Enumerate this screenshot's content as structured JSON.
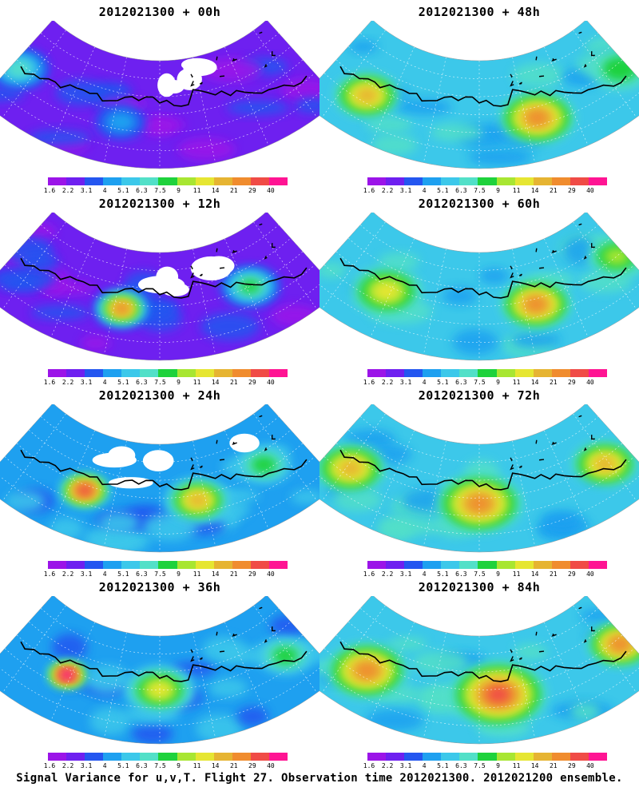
{
  "caption": "Signal Variance for u,v,T. Flight 27. Observation time 2012021300. 2012021200 ensemble.",
  "colorbar": {
    "labels": [
      "1.6",
      "2.2",
      "3.1",
      "4",
      "5.1",
      "6.3",
      "7.5",
      "9",
      "11",
      "14",
      "21",
      "29",
      "40"
    ],
    "colors": [
      "#9b14e8",
      "#6e20f0",
      "#2456f0",
      "#1ea0f0",
      "#3cc8ea",
      "#52e0c8",
      "#1ed23c",
      "#a8e632",
      "#e6e632",
      "#e6b432",
      "#f08c2e",
      "#f04b46",
      "#ff1493"
    ]
  },
  "coastline_color": "#000000",
  "missing_color": "#ffffff",
  "panels": [
    {
      "title": "2012021300 + 00h",
      "bg_level": 1,
      "hotspots": [
        {
          "lon": -40,
          "lat": 0.55,
          "level": 5,
          "size": 0.2
        },
        {
          "lon": -10,
          "lat": 0.6,
          "level": 3,
          "size": 0.16
        }
      ],
      "has_missing": true
    },
    {
      "title": "2012021300 + 12h",
      "bg_level": 1,
      "hotspots": [
        {
          "lon": -10,
          "lat": 0.55,
          "level": 10,
          "size": 0.18
        },
        {
          "lon": 25,
          "lat": 0.5,
          "level": 6,
          "size": 0.2
        }
      ],
      "has_missing": true
    },
    {
      "title": "2012021300 + 24h",
      "bg_level": 3,
      "hotspots": [
        {
          "lon": -20,
          "lat": 0.55,
          "level": 11,
          "size": 0.16
        },
        {
          "lon": 10,
          "lat": 0.55,
          "level": 9,
          "size": 0.22
        },
        {
          "lon": 30,
          "lat": 0.45,
          "level": 6,
          "size": 0.18
        }
      ],
      "has_missing": true
    },
    {
      "title": "2012021300 + 36h",
      "bg_level": 3,
      "hotspots": [
        {
          "lon": -25,
          "lat": 0.55,
          "level": 12,
          "size": 0.12
        },
        {
          "lon": 0,
          "lat": 0.5,
          "level": 8,
          "size": 0.24
        },
        {
          "lon": 35,
          "lat": 0.55,
          "level": 6,
          "size": 0.18
        }
      ],
      "has_missing": false
    },
    {
      "title": "2012021300 + 48h",
      "bg_level": 4,
      "hotspots": [
        {
          "lon": -30,
          "lat": 0.6,
          "level": 9,
          "size": 0.22
        },
        {
          "lon": 15,
          "lat": 0.6,
          "level": 10,
          "size": 0.26
        },
        {
          "lon": 40,
          "lat": 0.55,
          "level": 6,
          "size": 0.2
        }
      ],
      "has_missing": false
    },
    {
      "title": "2012021300 + 60h",
      "bg_level": 4,
      "hotspots": [
        {
          "lon": -25,
          "lat": 0.55,
          "level": 8,
          "size": 0.24
        },
        {
          "lon": 15,
          "lat": 0.55,
          "level": 10,
          "size": 0.24
        },
        {
          "lon": 40,
          "lat": 0.5,
          "level": 7,
          "size": 0.18
        }
      ],
      "has_missing": false
    },
    {
      "title": "2012021300 + 72h",
      "bg_level": 4,
      "hotspots": [
        {
          "lon": -35,
          "lat": 0.6,
          "level": 9,
          "size": 0.24
        },
        {
          "lon": 0,
          "lat": 0.55,
          "level": 10,
          "size": 0.3
        },
        {
          "lon": 35,
          "lat": 0.55,
          "level": 9,
          "size": 0.22
        }
      ],
      "has_missing": false
    },
    {
      "title": "2012021300 + 84h",
      "bg_level": 4,
      "hotspots": [
        {
          "lon": -30,
          "lat": 0.6,
          "level": 10,
          "size": 0.28
        },
        {
          "lon": 5,
          "lat": 0.55,
          "level": 11,
          "size": 0.34
        },
        {
          "lon": 40,
          "lat": 0.55,
          "level": 10,
          "size": 0.22
        }
      ],
      "has_missing": false
    }
  ]
}
